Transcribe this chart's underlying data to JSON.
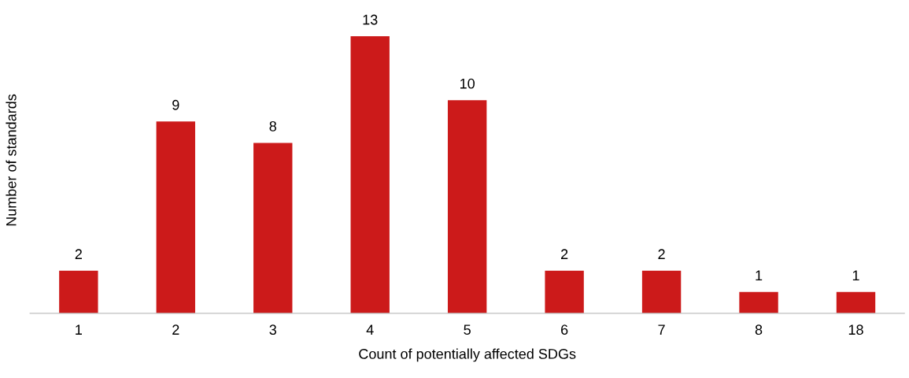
{
  "chart_data": {
    "type": "bar",
    "xlabel": "Count of potentially affected SDGs",
    "ylabel": "Number of standards",
    "categories": [
      "1",
      "2",
      "3",
      "4",
      "5",
      "6",
      "7",
      "8",
      "18"
    ],
    "values": [
      2,
      9,
      8,
      13,
      10,
      2,
      2,
      1,
      1
    ],
    "color": "#cc1a1a",
    "data_labels": true,
    "grid": false,
    "legend": false
  }
}
